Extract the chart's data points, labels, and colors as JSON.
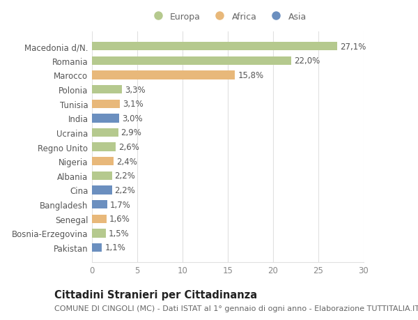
{
  "countries": [
    "Macedonia d/N.",
    "Romania",
    "Marocco",
    "Polonia",
    "Tunisia",
    "India",
    "Ucraina",
    "Regno Unito",
    "Nigeria",
    "Albania",
    "Cina",
    "Bangladesh",
    "Senegal",
    "Bosnia-Erzegovina",
    "Pakistan"
  ],
  "values": [
    27.1,
    22.0,
    15.8,
    3.3,
    3.1,
    3.0,
    2.9,
    2.6,
    2.4,
    2.2,
    2.2,
    1.7,
    1.6,
    1.5,
    1.1
  ],
  "labels": [
    "27,1%",
    "22,0%",
    "15,8%",
    "3,3%",
    "3,1%",
    "3,0%",
    "2,9%",
    "2,6%",
    "2,4%",
    "2,2%",
    "2,2%",
    "1,7%",
    "1,6%",
    "1,5%",
    "1,1%"
  ],
  "continents": [
    "Europa",
    "Europa",
    "Africa",
    "Europa",
    "Africa",
    "Asia",
    "Europa",
    "Europa",
    "Africa",
    "Europa",
    "Asia",
    "Asia",
    "Africa",
    "Europa",
    "Asia"
  ],
  "colors": {
    "Europa": "#b5c98e",
    "Africa": "#e8b87a",
    "Asia": "#6b8fbf"
  },
  "xlim": [
    0,
    30
  ],
  "xticks": [
    0,
    5,
    10,
    15,
    20,
    25,
    30
  ],
  "title": "Cittadini Stranieri per Cittadinanza",
  "subtitle": "COMUNE DI CINGOLI (MC) - Dati ISTAT al 1° gennaio di ogni anno - Elaborazione TUTTITALIA.IT",
  "bg_color": "#ffffff",
  "plot_bg_color": "#ffffff",
  "grid_color": "#e0e0e0",
  "bar_height": 0.6,
  "label_fontsize": 8.5,
  "tick_fontsize": 8.5,
  "title_fontsize": 10.5,
  "subtitle_fontsize": 8.0
}
